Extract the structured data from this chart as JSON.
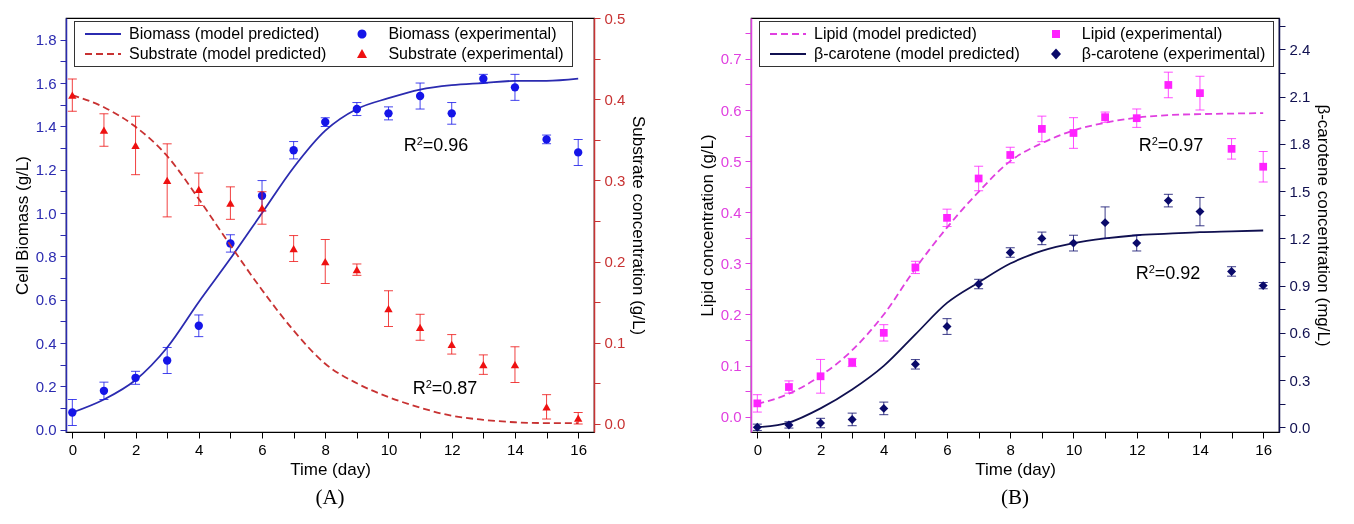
{
  "chart_data": [
    {
      "type": "line",
      "title": "(A)",
      "xlabel": "Time (day)",
      "ylabel": "Cell Biomass (g/L)",
      "y2label": "Substrate concentration (g/L)",
      "legend": "top",
      "x": [
        0,
        1,
        2,
        3,
        4,
        5,
        6,
        7,
        8,
        9,
        10,
        11,
        12,
        13,
        14,
        15,
        16
      ],
      "xlim": [
        -0.2,
        16.5
      ],
      "xticks": [
        0,
        {
          "value": 1,
          "label": null
        },
        2,
        {
          "value": 3,
          "label": null
        },
        4,
        {
          "value": 5,
          "label": null
        },
        6,
        {
          "value": 7,
          "label": null
        },
        8,
        {
          "value": 9,
          "label": null
        },
        10,
        {
          "value": 11,
          "label": null
        },
        12,
        {
          "value": 13,
          "label": null
        },
        14,
        {
          "value": 15,
          "label": null
        },
        16
      ],
      "ylim": [
        -0.01,
        1.9
      ],
      "yticks": [
        {
          "value": 0,
          "label": "0.0"
        },
        {
          "value": 0.1,
          "label": null
        },
        0.2,
        {
          "value": 0.3,
          "label": null
        },
        0.4,
        {
          "value": 0.5,
          "label": null
        },
        0.6,
        {
          "value": 0.7,
          "label": null
        },
        0.8,
        {
          "value": 0.9,
          "label": null
        },
        {
          "value": 1,
          "label": "1.0"
        },
        {
          "value": 1.1,
          "label": null
        },
        1.2,
        {
          "value": 1.3,
          "label": null
        },
        1.4,
        {
          "value": 1.5,
          "label": null
        },
        1.6,
        {
          "value": 1.7,
          "label": null
        },
        1.8
      ],
      "y2lim": [
        -0.01,
        0.5
      ],
      "y2ticks": [
        {
          "value": 0,
          "label": "0.0"
        },
        {
          "value": 0.05,
          "label": null
        },
        0.1,
        {
          "value": 0.15,
          "label": null
        },
        0.2,
        {
          "value": 0.25,
          "label": null
        },
        0.3,
        {
          "value": 0.35,
          "label": null
        },
        0.4,
        {
          "value": 0.45,
          "label": null
        },
        0.5
      ],
      "annotations": [
        "R$^{2}$=0.96",
        "R$^{2}$=0.87"
      ],
      "series": [
        {
          "name": "Biomass (model predicted)",
          "type": "line",
          "line_style": "solid",
          "color": "#2b2bb0",
          "values": [
            0.08,
            0.14,
            0.23,
            0.38,
            0.59,
            0.79,
            1.0,
            1.21,
            1.38,
            1.48,
            1.53,
            1.57,
            1.59,
            1.6,
            1.61,
            1.61,
            1.62
          ]
        },
        {
          "name": "Biomass (experimental)",
          "type": "scatter",
          "marker": "circle",
          "color": "#1515e8",
          "values": [
            0.08,
            0.18,
            0.24,
            0.32,
            0.48,
            0.86,
            1.08,
            1.29,
            1.42,
            1.48,
            1.46,
            1.54,
            1.46,
            1.62,
            1.58,
            1.34,
            1.28
          ],
          "errors": [
            0.06,
            0.04,
            0.03,
            0.06,
            0.05,
            0.04,
            0.07,
            0.04,
            0.02,
            0.03,
            0.03,
            0.06,
            0.05,
            0.02,
            0.06,
            0.02,
            0.06
          ]
        },
        {
          "name": "Substrate (model predicted)",
          "type": "line",
          "line_style": "dashed",
          "axis": "y2",
          "color": "#c83232",
          "values": [
            0.405,
            0.39,
            0.366,
            0.33,
            0.277,
            0.22,
            0.165,
            0.115,
            0.074,
            0.05,
            0.033,
            0.02,
            0.01,
            0.005,
            0.002,
            0.001,
            0.001
          ]
        },
        {
          "name": "Substrate (experimental)",
          "type": "scatter",
          "marker": "triangle",
          "axis": "y2",
          "color": "#ee1111",
          "values": [
            0.405,
            0.362,
            0.343,
            0.3,
            0.289,
            0.272,
            0.266,
            0.216,
            0.2,
            0.19,
            0.142,
            0.119,
            0.098,
            0.073,
            0.073,
            0.021,
            0.007
          ],
          "errors": [
            0.02,
            0.02,
            0.036,
            0.045,
            0.02,
            0.02,
            0.02,
            0.016,
            0.027,
            0.007,
            0.022,
            0.016,
            0.012,
            0.012,
            0.022,
            0.015,
            0.007
          ]
        }
      ]
    },
    {
      "type": "line",
      "title": "(B)",
      "xlabel": "Time (day)",
      "ylabel": "Lipid concentration (g/L)",
      "y2label": "β-carotene concentration (mg/L)",
      "legend": "top",
      "x": [
        0,
        1,
        2,
        3,
        4,
        5,
        6,
        7,
        8,
        9,
        10,
        11,
        12,
        13,
        14,
        15,
        16
      ],
      "xlim": [
        -0.2,
        16.5
      ],
      "xticks": [
        0,
        {
          "value": 1,
          "label": null
        },
        2,
        {
          "value": 3,
          "label": null
        },
        4,
        {
          "value": 5,
          "label": null
        },
        6,
        {
          "value": 7,
          "label": null
        },
        8,
        {
          "value": 9,
          "label": null
        },
        10,
        {
          "value": 11,
          "label": null
        },
        12,
        {
          "value": 13,
          "label": null
        },
        14,
        {
          "value": 15,
          "label": null
        },
        16
      ],
      "ylim": [
        -0.03,
        0.78
      ],
      "yticks": [
        {
          "value": 0,
          "label": "0.0"
        },
        {
          "value": 0.05,
          "label": null
        },
        0.1,
        {
          "value": 0.15,
          "label": null
        },
        0.2,
        {
          "value": 0.25,
          "label": null
        },
        0.3,
        {
          "value": 0.35,
          "label": null
        },
        0.4,
        {
          "value": 0.45,
          "label": null
        },
        0.5,
        {
          "value": 0.55,
          "label": null
        },
        0.6,
        {
          "value": 0.65,
          "label": null
        },
        0.7,
        {
          "value": 0.75,
          "label": null
        }
      ],
      "y2lim": [
        -0.03,
        2.6
      ],
      "y2ticks": [
        {
          "value": 0,
          "label": "0.0"
        },
        {
          "value": 0.15,
          "label": null
        },
        0.3,
        {
          "value": 0.45,
          "label": null
        },
        0.6,
        {
          "value": 0.75,
          "label": null
        },
        0.9,
        {
          "value": 1.05,
          "label": null
        },
        1.2,
        {
          "value": 1.35,
          "label": null
        },
        1.5,
        {
          "value": 1.65,
          "label": null
        },
        1.8,
        {
          "value": 1.95,
          "label": null
        },
        2.1,
        {
          "value": 2.25,
          "label": null
        },
        2.4,
        {
          "value": 2.55,
          "label": null
        }
      ],
      "annotations": [
        "R$^{2}$=0.97",
        "R$^{2}$=0.92"
      ],
      "series": [
        {
          "name": "Lipid (model predicted)",
          "type": "line",
          "line_style": "dashed",
          "color": "#e040e0",
          "values": [
            0.025,
            0.045,
            0.08,
            0.13,
            0.2,
            0.29,
            0.37,
            0.44,
            0.5,
            0.535,
            0.56,
            0.575,
            0.585,
            0.59,
            0.592,
            0.593,
            0.594
          ]
        },
        {
          "name": "Lipid (experimental)",
          "type": "scatter",
          "marker": "square",
          "color": "#ff22ff",
          "values": [
            0.026,
            0.058,
            0.079,
            0.106,
            0.164,
            0.292,
            0.389,
            0.466,
            0.512,
            0.563,
            0.555,
            0.586,
            0.584,
            0.649,
            0.633,
            0.524,
            0.489
          ],
          "errors": [
            0.017,
            0.012,
            0.033,
            0.008,
            0.016,
            0.012,
            0.017,
            0.024,
            0.015,
            0.025,
            0.03,
            0.01,
            0.018,
            0.025,
            0.033,
            0.02,
            0.03
          ]
        },
        {
          "name": "β-carotene (model predicted)",
          "type": "line",
          "line_style": "solid",
          "axis": "y2",
          "color": "#101050",
          "values": [
            0.0,
            0.03,
            0.12,
            0.24,
            0.39,
            0.59,
            0.79,
            0.92,
            1.04,
            1.12,
            1.17,
            1.2,
            1.22,
            1.23,
            1.24,
            1.245,
            1.25
          ]
        },
        {
          "name": "β-carotene (experimental)",
          "type": "scatter",
          "marker": "diamond",
          "axis": "y2",
          "color": "#0a0a6a",
          "values": [
            0.0,
            0.015,
            0.027,
            0.05,
            0.12,
            0.4,
            0.64,
            0.91,
            1.11,
            1.2,
            1.17,
            1.3,
            1.17,
            1.44,
            1.37,
            0.99,
            0.9
          ],
          "errors": [
            0.02,
            0.02,
            0.03,
            0.04,
            0.04,
            0.03,
            0.05,
            0.03,
            0.03,
            0.04,
            0.05,
            0.1,
            0.05,
            0.04,
            0.09,
            0.03,
            0.02
          ]
        }
      ]
    }
  ]
}
